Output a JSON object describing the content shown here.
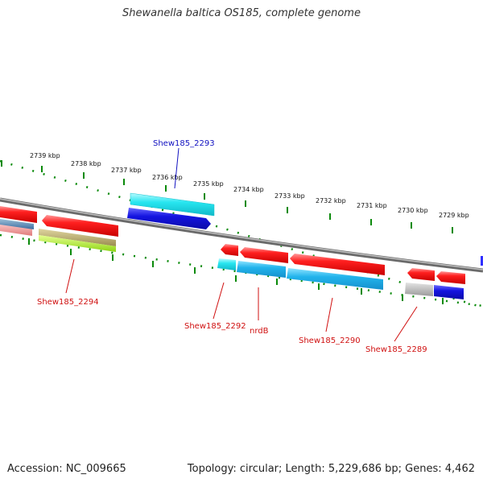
{
  "title": "Shewanella baltica OS185, complete genome",
  "footer": {
    "accession": "Accession: NC_009665",
    "summary": "Topology: circular; Length: 5,229,686 bp; Genes: 4,462"
  },
  "colors": {
    "backbone": "#8f8f8f",
    "tick": "#0a8a0a",
    "label_forward": "#1010c0",
    "label_reverse": "#d01010",
    "red_gene": "#ee1111",
    "cyan_gene": "#22dde8",
    "blue_gene": "#1a1ad8"
  },
  "kbp_labels": [
    "2739 kbp",
    "2738 kbp",
    "2737 kbp",
    "2736 kbp",
    "2735 kbp",
    "2734 kbp",
    "2733 kbp",
    "2732 kbp",
    "2731 kbp",
    "2730 kbp",
    "2729 kbp"
  ],
  "gene_labels": [
    "Shew185_2293",
    "Shew185_2294",
    "Shew185_2292",
    "nrdB",
    "Shew185_2290",
    "Shew185_2289"
  ]
}
